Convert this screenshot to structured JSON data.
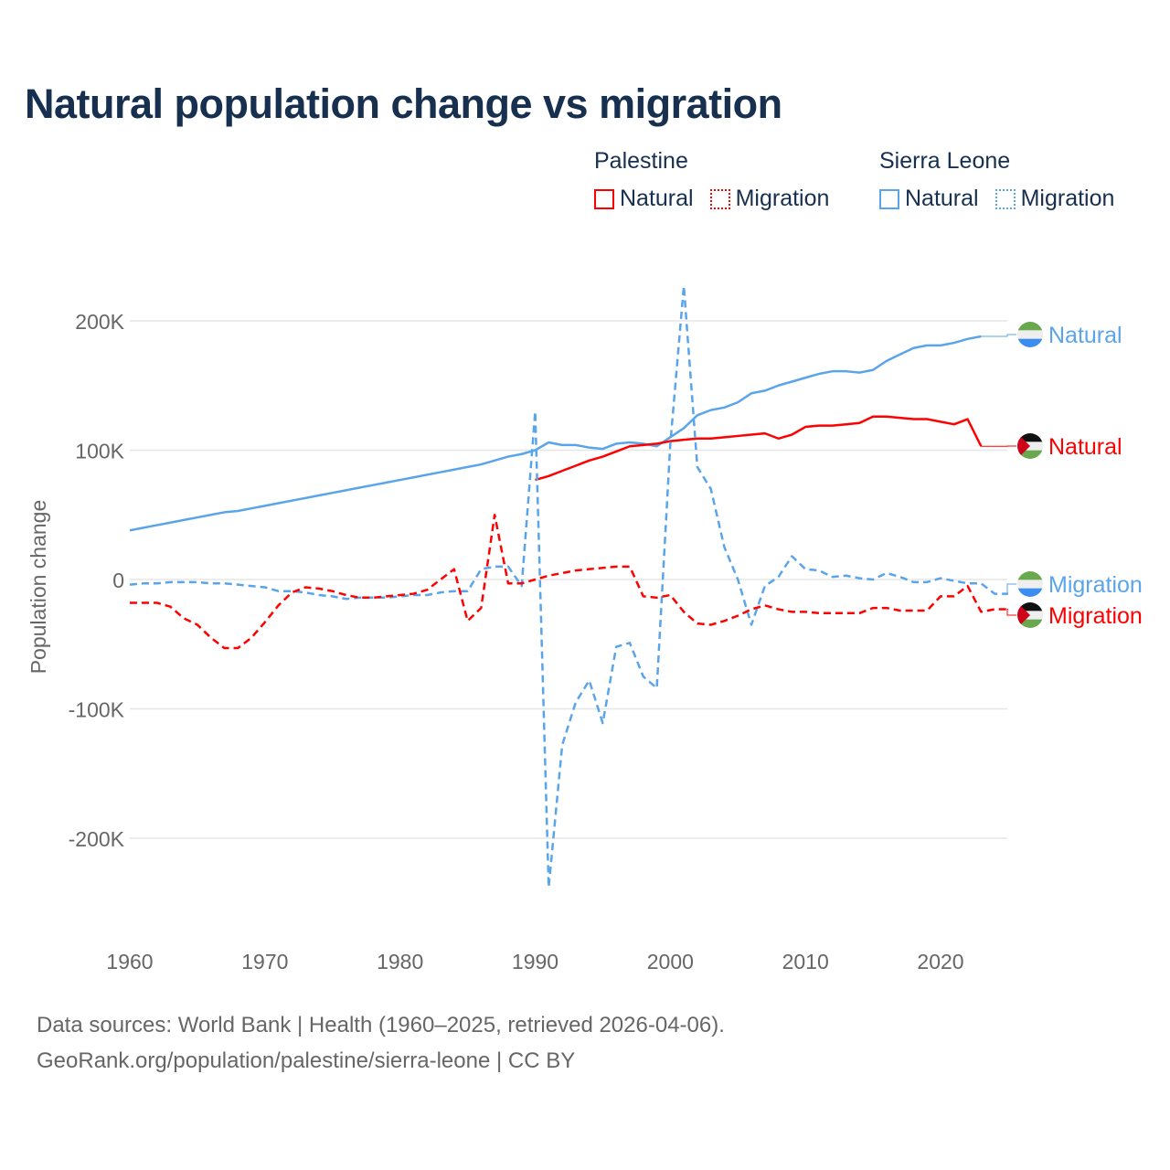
{
  "chart_data": {
    "type": "line",
    "title": "Natural population change vs migration",
    "xlabel": "",
    "ylabel": "Population change",
    "xlim": [
      1960,
      2025
    ],
    "ylim": [
      -250000,
      230000
    ],
    "x_ticks": [
      1960,
      1970,
      1980,
      1990,
      2000,
      2010,
      2020
    ],
    "x_tick_labels": [
      "1960",
      "1970",
      "1980",
      "1990",
      "2000",
      "2010",
      "2020"
    ],
    "y_ticks": [
      200000,
      100000,
      0,
      -100000,
      -200000
    ],
    "y_tick_labels": [
      "200K",
      "100K",
      "0",
      "-100K",
      "-200K"
    ],
    "grid": true,
    "legend": {
      "placement": "top-right",
      "groups": [
        {
          "name": "Palestine",
          "items": [
            "Natural",
            "Migration"
          ]
        },
        {
          "name": "Sierra Leone",
          "items": [
            "Natural",
            "Migration"
          ]
        }
      ]
    },
    "series": [
      {
        "name": "Sierra Leone Natural",
        "label": "Natural",
        "country": "Sierra Leone",
        "color": "#5aa5ea",
        "dashed": false,
        "start": 1960,
        "values": [
          38,
          40,
          42,
          44,
          46,
          48,
          50,
          52,
          53,
          55,
          57,
          59,
          61,
          63,
          65,
          67,
          69,
          71,
          73,
          75,
          77,
          79,
          81,
          83,
          85,
          87,
          89,
          92,
          95,
          97,
          100,
          106,
          104,
          104,
          102,
          101,
          105,
          106,
          105,
          103,
          110,
          117,
          127,
          131,
          133,
          137,
          144,
          146,
          150,
          153,
          156,
          159,
          161,
          161,
          160,
          162,
          169,
          174,
          179,
          181,
          181,
          183,
          186,
          188
        ]
      },
      {
        "name": "Palestine Natural",
        "label": "Natural",
        "country": "Palestine",
        "color": "#ff0000",
        "dashed": false,
        "start": 1990,
        "values": [
          77,
          80,
          84,
          88,
          92,
          95,
          99,
          103,
          104,
          105,
          107,
          108,
          109,
          109,
          110,
          111,
          112,
          113,
          109,
          112,
          118,
          119,
          119,
          120,
          121,
          126,
          126,
          125,
          124,
          124,
          122,
          120,
          124,
          103
        ]
      },
      {
        "name": "Sierra Leone Migration",
        "label": "Migration",
        "country": "Sierra Leone",
        "color": "#5aa5ea",
        "dashed": true,
        "start": 1960,
        "values": [
          -4,
          -3,
          -3,
          -2,
          -2,
          -2,
          -3,
          -3,
          -4,
          -5,
          -6,
          -9,
          -9,
          -10,
          -12,
          -13,
          -15,
          -14,
          -14,
          -14,
          -13,
          -12,
          -12,
          -10,
          -9,
          -9,
          8,
          10,
          10,
          -5,
          130,
          -238,
          -128,
          -95,
          -78,
          -111,
          -52,
          -49,
          -75,
          -84,
          105,
          227,
          87,
          70,
          25,
          0,
          -35,
          -5,
          2,
          18,
          8,
          7,
          2,
          3,
          1,
          0,
          5,
          2,
          -2,
          -2,
          1,
          -1,
          -3,
          -3,
          -11,
          -11
        ]
      },
      {
        "name": "Palestine Migration",
        "label": "Migration",
        "country": "Palestine",
        "color": "#ff0000",
        "dashed": true,
        "start": 1960,
        "values": [
          -18,
          -18,
          -18,
          -21,
          -30,
          -35,
          -45,
          -53,
          -53,
          -45,
          -33,
          -20,
          -10,
          -6,
          -7,
          -9,
          -12,
          -14,
          -14,
          -13,
          -12,
          -11,
          -8,
          0,
          8,
          -32,
          -22,
          50,
          -3,
          -3,
          0,
          3,
          5,
          7,
          8,
          9,
          10,
          10,
          -13,
          -14,
          -12,
          -25,
          -34,
          -35,
          -32,
          -28,
          -23,
          -20,
          -23,
          -25,
          -25,
          -26,
          -26,
          -26,
          -26,
          -22,
          -22,
          -24,
          -24,
          -24,
          -13,
          -13,
          -5,
          -25,
          -23,
          -23
        ]
      }
    ],
    "value_unit": "thousands"
  },
  "legend": {
    "palestine": {
      "title": "Palestine",
      "natural": "Natural",
      "migration": "Migration"
    },
    "sierra_leone": {
      "title": "Sierra Leone",
      "natural": "Natural",
      "migration": "Migration"
    }
  },
  "footer": {
    "line1": "Data sources: World Bank | Health (1960–2025, retrieved 2026-04-06).",
    "line2": "GeoRank.org/population/palestine/sierra-leone | CC BY"
  }
}
